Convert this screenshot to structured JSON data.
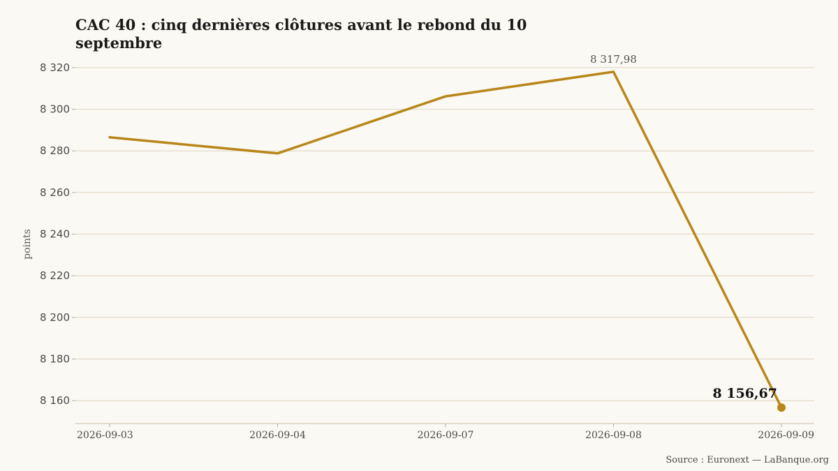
{
  "chart_data": {
    "type": "line",
    "title": "CAC 40 : cinq dernières clôtures avant le rebond du 10 septembre",
    "ylabel": "points",
    "xlabel": "",
    "x": [
      "2026-09-03",
      "2026-09-04",
      "2026-09-07",
      "2026-09-08",
      "2026-09-09"
    ],
    "series": [
      {
        "values": [
          8286.5,
          8278.8,
          8306.2,
          8317.98,
          8156.67
        ]
      }
    ],
    "yticks": [
      8160,
      8180,
      8200,
      8220,
      8240,
      8260,
      8280,
      8300,
      8320
    ],
    "ytick_labels": [
      "8 160",
      "8 180",
      "8 200",
      "8 220",
      "8 240",
      "8 260",
      "8 280",
      "8 300",
      "8 320"
    ],
    "ylim": [
      8149,
      8325
    ],
    "grid": "horizontal",
    "annotations": {
      "max": {
        "x": "2026-09-08",
        "label": "8 317,98"
      },
      "last": {
        "x": "2026-09-09",
        "label": "8 156,67"
      }
    },
    "line_color": "#b8861b",
    "source": "Source : Euronext — LaBanque.org"
  }
}
